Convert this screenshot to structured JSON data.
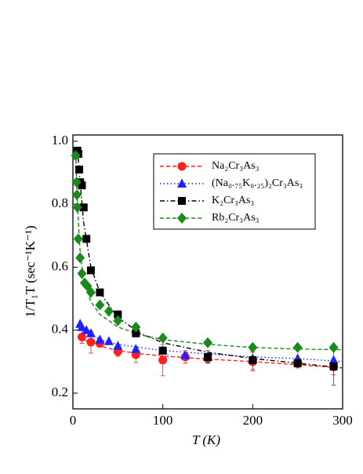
{
  "chart_data": {
    "type": "scatter",
    "xlabel": "T (K)",
    "ylabel": "1/T₁T (sec⁻¹K⁻¹)",
    "xlim": [
      0,
      300
    ],
    "ylim": [
      0.15,
      1.02
    ],
    "xticks": [
      0,
      100,
      200,
      300
    ],
    "yticks": [
      0.2,
      0.4,
      0.6,
      0.8,
      {
        "value": 1,
        "label": "1.0"
      }
    ],
    "legend": "upper-right",
    "series": [
      {
        "name": "Na₂Cr₃As₃",
        "color": "#ff1f1f",
        "marker": "circle",
        "linestyle": "dashed",
        "x": [
          10,
          20,
          30,
          50,
          70,
          100,
          125,
          150,
          200,
          250,
          290
        ],
        "values": [
          0.378,
          0.362,
          0.358,
          0.332,
          0.322,
          0.305,
          0.315,
          0.31,
          0.3,
          0.295,
          0.283
        ],
        "errors": [
          0.02,
          0.035,
          0.01,
          0.015,
          0.025,
          0.05,
          0.02,
          0.015,
          0.03,
          0.01,
          0.025
        ],
        "fit_x": [
          8,
          12,
          20,
          30,
          50,
          75,
          100,
          150,
          200,
          250,
          300
        ],
        "fit_values": [
          0.38,
          0.37,
          0.36,
          0.35,
          0.335,
          0.325,
          0.318,
          0.308,
          0.3,
          0.29,
          0.28
        ]
      },
      {
        "name": "(Na₀.₇₅K₀.₂₅)₂Cr₃As₃",
        "color": "#1f1fff",
        "marker": "triangle",
        "linestyle": "dotted",
        "x": [
          8,
          10,
          15,
          20,
          30,
          40,
          50,
          70,
          100,
          125,
          150,
          200,
          250,
          290
        ],
        "values": [
          0.42,
          0.41,
          0.4,
          0.39,
          0.37,
          0.365,
          0.35,
          0.34,
          0.335,
          0.32,
          0.315,
          0.31,
          0.31,
          0.305
        ],
        "fit_x": [
          8,
          12,
          20,
          30,
          50,
          75,
          100,
          150,
          200,
          250,
          300
        ],
        "fit_values": [
          0.415,
          0.4,
          0.385,
          0.37,
          0.355,
          0.345,
          0.335,
          0.325,
          0.315,
          0.31,
          0.3
        ]
      },
      {
        "name": "K₂Cr₃As₃",
        "color": "#000000",
        "marker": "square",
        "linestyle": "dashdot",
        "x": [
          5,
          6,
          7,
          8,
          10,
          12,
          15,
          20,
          30,
          50,
          70,
          100,
          150,
          200,
          250,
          290
        ],
        "values": [
          0.97,
          0.96,
          0.91,
          0.87,
          0.86,
          0.79,
          0.69,
          0.59,
          0.52,
          0.45,
          0.39,
          0.335,
          0.315,
          0.305,
          0.295,
          0.285
        ],
        "errors": [
          0.01,
          0.01,
          0.01,
          0.01,
          0.01,
          0.01,
          0.01,
          0.01,
          0.01,
          0.01,
          0.01,
          0.01,
          0.02,
          0.03,
          0.015,
          0.06
        ],
        "fit_x": [
          5,
          8,
          12,
          20,
          30,
          50,
          75,
          100,
          150,
          200,
          250,
          300
        ],
        "fit_values": [
          0.98,
          0.87,
          0.74,
          0.6,
          0.52,
          0.44,
          0.39,
          0.36,
          0.33,
          0.31,
          0.295,
          0.28
        ]
      },
      {
        "name": "Rb₂Cr₃As₃",
        "color": "#1a8a1a",
        "marker": "diamond",
        "linestyle": "dashed",
        "x": [
          3,
          4,
          4.5,
          5,
          6,
          8,
          10,
          13,
          16,
          20,
          30,
          40,
          50,
          70,
          100,
          150,
          200,
          250,
          290
        ],
        "values": [
          0.955,
          0.87,
          0.83,
          0.79,
          0.69,
          0.63,
          0.58,
          0.55,
          0.54,
          0.52,
          0.48,
          0.46,
          0.43,
          0.41,
          0.375,
          0.36,
          0.345,
          0.345,
          0.345
        ],
        "fit_x": [
          3,
          5,
          8,
          12,
          20,
          30,
          50,
          75,
          100,
          150,
          200,
          250,
          300
        ],
        "fit_values": [
          0.98,
          0.8,
          0.65,
          0.56,
          0.49,
          0.45,
          0.41,
          0.385,
          0.37,
          0.355,
          0.345,
          0.34,
          0.338
        ]
      }
    ]
  }
}
